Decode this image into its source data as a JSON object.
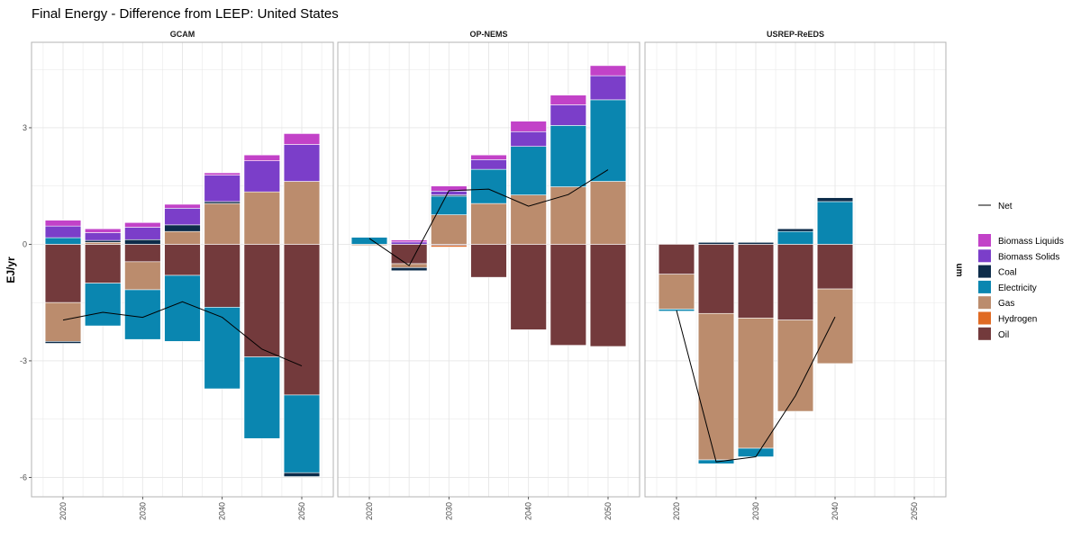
{
  "chart_data": {
    "type": "bar",
    "title": "Final Energy  - Difference from LEEP: United States",
    "ylabel": "EJ/yr",
    "right_label": "um",
    "ylim": [
      -6.5,
      5.2
    ],
    "y_ticks": [
      3,
      0,
      -3,
      -6
    ],
    "y_tick_labels": [
      "3",
      "0",
      "-3",
      "-6"
    ],
    "x_years": [
      2020,
      2025,
      2030,
      2035,
      2040,
      2045,
      2050
    ],
    "x_tick_labels": [
      "2020",
      "2030",
      "2040",
      "2050"
    ],
    "stack_order": [
      "Oil",
      "Hydrogen",
      "Gas",
      "Electricity",
      "Coal",
      "Biomass Solids",
      "Biomass Liquids"
    ],
    "colors": {
      "Biomass Liquids": "#c242c8",
      "Biomass Solids": "#7b3ec9",
      "Coal": "#0d2c4a",
      "Electricity": "#0a86b0",
      "Gas": "#bb8c6d",
      "Hydrogen": "#e06a23",
      "Oil": "#733a3c",
      "Net": "#000000"
    },
    "legend": {
      "net_label": "Net",
      "items": [
        "Biomass Liquids",
        "Biomass Solids",
        "Coal",
        "Electricity",
        "Gas",
        "Hydrogen",
        "Oil"
      ]
    },
    "panels": [
      {
        "name": "GCAM",
        "bars": [
          {
            "year": 2020,
            "Oil": -1.5,
            "Gas": -1.0,
            "Electricity": 0.17,
            "Coal": -0.05,
            "Biomass Solids": 0.3,
            "Biomass Liquids": 0.15
          },
          {
            "year": 2025,
            "Oil": -1.0,
            "Electricity": -1.1,
            "Gas": 0.05,
            "Coal": 0.05,
            "Biomass Solids": 0.2,
            "Biomass Liquids": 0.1
          },
          {
            "year": 2030,
            "Oil": -0.45,
            "Gas": -0.72,
            "Electricity": -1.28,
            "Coal": 0.12,
            "Biomass Solids": 0.32,
            "Biomass Liquids": 0.12
          },
          {
            "year": 2035,
            "Gas": 0.33,
            "Oil": -0.8,
            "Electricity": -1.7,
            "Coal": 0.17,
            "Biomass Solids": 0.43,
            "Biomass Liquids": 0.1
          },
          {
            "year": 2040,
            "Gas": 1.05,
            "Oil": -1.62,
            "Electricity": -2.1,
            "Coal": 0.05,
            "Biomass Solids": 0.68,
            "Biomass Liquids": 0.06
          },
          {
            "year": 2045,
            "Gas": 1.35,
            "Oil": -2.9,
            "Electricity": -2.1,
            "Biomass Solids": 0.8,
            "Biomass Liquids": 0.15
          },
          {
            "year": 2050,
            "Gas": 1.62,
            "Oil": -3.88,
            "Electricity": -2.0,
            "Coal": -0.1,
            "Biomass Solids": 0.95,
            "Biomass Liquids": 0.28
          }
        ],
        "net": [
          {
            "year": 2020,
            "value": -1.95
          },
          {
            "year": 2025,
            "value": -1.75
          },
          {
            "year": 2030,
            "value": -1.88
          },
          {
            "year": 2035,
            "value": -1.48
          },
          {
            "year": 2040,
            "value": -1.88
          },
          {
            "year": 2045,
            "value": -2.7
          },
          {
            "year": 2050,
            "value": -3.13
          }
        ]
      },
      {
        "name": "OP-NEMS",
        "bars": [
          {
            "year": 2020,
            "Electricity": 0.18,
            "Gas": -0.03
          },
          {
            "year": 2025,
            "Oil": -0.5,
            "Gas": -0.1,
            "Coal": -0.08,
            "Biomass Solids": 0.06,
            "Biomass Liquids": 0.05
          },
          {
            "year": 2030,
            "Oil": -0.03,
            "Hydrogen": -0.04,
            "Gas": 0.76,
            "Electricity": 0.48,
            "Coal": 0.03,
            "Biomass Solids": 0.1,
            "Biomass Liquids": 0.13
          },
          {
            "year": 2035,
            "Oil": -0.85,
            "Gas": 1.05,
            "Electricity": 0.88,
            "Biomass Solids": 0.25,
            "Biomass Liquids": 0.12
          },
          {
            "year": 2040,
            "Oil": -2.2,
            "Gas": 1.27,
            "Electricity": 1.25,
            "Biomass Solids": 0.38,
            "Biomass Liquids": 0.27
          },
          {
            "year": 2045,
            "Oil": -2.6,
            "Gas": 1.48,
            "Electricity": 1.58,
            "Biomass Solids": 0.53,
            "Biomass Liquids": 0.25
          },
          {
            "year": 2050,
            "Oil": -2.63,
            "Gas": 1.62,
            "Electricity": 2.1,
            "Biomass Solids": 0.62,
            "Biomass Liquids": 0.26
          }
        ],
        "net": [
          {
            "year": 2020,
            "value": 0.15
          },
          {
            "year": 2025,
            "value": -0.55
          },
          {
            "year": 2030,
            "value": 1.38
          },
          {
            "year": 2035,
            "value": 1.42
          },
          {
            "year": 2040,
            "value": 0.98
          },
          {
            "year": 2045,
            "value": 1.28
          },
          {
            "year": 2050,
            "value": 1.92
          }
        ]
      },
      {
        "name": "USREP-ReEDS",
        "bars": [
          {
            "year": 2020,
            "Oil": -0.77,
            "Gas": -0.9,
            "Electricity": -0.05
          },
          {
            "year": 2025,
            "Oil": -1.78,
            "Gas": -3.77,
            "Electricity": -0.1,
            "Coal": 0.05
          },
          {
            "year": 2030,
            "Oil": -1.9,
            "Gas": -3.35,
            "Electricity": -0.22,
            "Coal": 0.05
          },
          {
            "year": 2035,
            "Oil": -1.95,
            "Gas": -2.35,
            "Electricity": 0.33,
            "Coal": 0.07
          },
          {
            "year": 2040,
            "Oil": -1.15,
            "Gas": -1.92,
            "Electricity": 1.1,
            "Coal": 0.1
          }
        ],
        "net": [
          {
            "year": 2020,
            "value": -1.7
          },
          {
            "year": 2025,
            "value": -5.6
          },
          {
            "year": 2030,
            "value": -5.47
          },
          {
            "year": 2035,
            "value": -3.9
          },
          {
            "year": 2040,
            "value": -1.87
          }
        ]
      }
    ]
  }
}
